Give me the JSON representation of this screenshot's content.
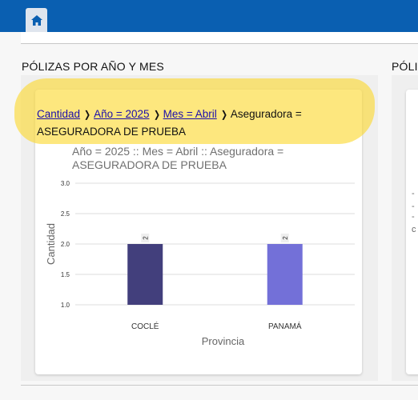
{
  "header": {
    "home_icon": "home-icon",
    "brand_color": "#0a5fb1"
  },
  "sections": [
    {
      "title": "PÓLIZAS POR AÑO Y MES"
    },
    {
      "title": "PÓLIZ"
    }
  ],
  "breadcrumb": {
    "items": [
      {
        "label": "Cantidad",
        "link": true
      },
      {
        "label": "Año = 2025",
        "link": true
      },
      {
        "label": "Mes = Abril",
        "link": true
      },
      {
        "label": "Aseguradora = ASEGURADORA DE PRUEBA",
        "link": false
      }
    ],
    "separator": "chevron-right-icon",
    "highlight_color": "#fcd728"
  },
  "chart_data": {
    "type": "bar",
    "title": "Año = 2025 :: Mes = Abril :: Aseguradora = ASEGURADORA DE PRUEBA",
    "title_lines": [
      "Año = 2025 :: Mes = Abril :: Aseguradora =",
      "ASEGURADORA DE PRUEBA"
    ],
    "categories": [
      "COCLÉ",
      "PANAMÁ"
    ],
    "values": [
      2,
      2
    ],
    "data_labels": [
      "2",
      "2"
    ],
    "bar_colors": [
      "#423f7c",
      "#7370d8"
    ],
    "xlabel": "Provincia",
    "ylabel": "Cantidad",
    "ylim": [
      1.0,
      3.0
    ],
    "yticks": [
      "1.0",
      "1.5",
      "2.0",
      "2.5",
      "3.0"
    ],
    "grid": true
  },
  "side_chart_fragments": [
    "-",
    "-",
    "-",
    "c"
  ]
}
